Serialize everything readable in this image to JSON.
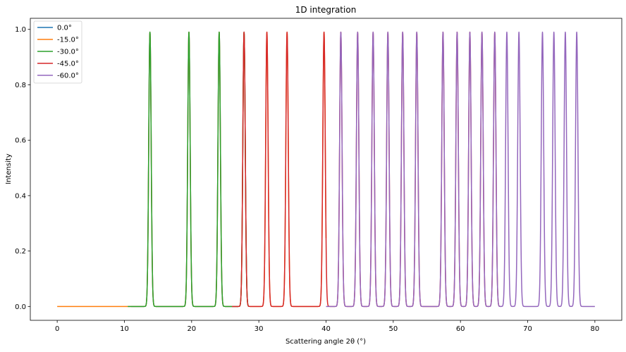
{
  "chart_data": {
    "type": "line",
    "title": "1D integration",
    "xlabel": "Scattering angle 2θ (°)",
    "ylabel": "Intensity",
    "xlim": [
      -4,
      84
    ],
    "ylim": [
      -0.05,
      1.04
    ],
    "xticks": [
      0,
      10,
      20,
      30,
      40,
      50,
      60,
      70,
      80
    ],
    "yticks": [
      0.0,
      0.2,
      0.4,
      0.6,
      0.8,
      1.0
    ],
    "xtick_labels": [
      "0",
      "10",
      "20",
      "30",
      "40",
      "50",
      "60",
      "70",
      "80"
    ],
    "ytick_labels": [
      "0.0",
      "0.2",
      "0.4",
      "0.6",
      "0.8",
      "1.0"
    ],
    "grid": false,
    "legend_position": "top-left",
    "peak_width_deg": 0.18,
    "series": [
      {
        "name": "0.0°",
        "color": "#1f77b4",
        "x_range": [
          11.0,
          28.5
        ],
        "peaks": [
          13.8,
          19.6,
          24.1,
          27.8
        ],
        "peak_heights": [
          0.99,
          0.99,
          0.99,
          0.99
        ]
      },
      {
        "name": "-15.0°",
        "color": "#ff7f0e",
        "x_range": [
          0.0,
          40.0
        ],
        "peaks": [
          13.8,
          19.6,
          24.1,
          27.8,
          31.2,
          34.2,
          39.7
        ],
        "peak_heights": [
          0.99,
          0.99,
          0.99,
          0.99,
          0.99,
          0.99,
          0.99
        ]
      },
      {
        "name": "-30.0°",
        "color": "#2ca02c",
        "x_range": [
          10.5,
          28.5
        ],
        "peaks": [
          13.8,
          19.6,
          24.1,
          27.8
        ],
        "peak_heights": [
          0.99,
          0.99,
          0.99,
          0.99
        ]
      },
      {
        "name": "-45.0°",
        "color": "#d62728",
        "x_range": [
          26.0,
          66.0
        ],
        "peaks": [
          27.8,
          31.2,
          34.2,
          39.7,
          42.2,
          44.7,
          47.0,
          49.2,
          51.4,
          53.5,
          57.4,
          59.5,
          61.4,
          63.2,
          65.1
        ],
        "peak_heights": [
          0.99,
          0.99,
          0.99,
          0.99,
          0.99,
          0.99,
          0.99,
          0.99,
          0.99,
          0.99,
          0.99,
          0.99,
          0.99,
          0.99,
          0.99
        ]
      },
      {
        "name": "-60.0°",
        "color": "#9467bd",
        "x_range": [
          40.0,
          80.0
        ],
        "peaks": [
          42.2,
          44.7,
          47.0,
          49.2,
          51.4,
          53.5,
          57.4,
          59.5,
          61.4,
          63.2,
          65.1,
          66.9,
          68.7,
          72.2,
          73.9,
          75.6,
          77.3
        ],
        "peak_heights": [
          0.99,
          0.99,
          0.99,
          0.99,
          0.99,
          0.99,
          0.99,
          0.99,
          0.99,
          0.99,
          0.99,
          0.99,
          0.99,
          0.99,
          0.99,
          0.99,
          0.99
        ]
      }
    ]
  }
}
